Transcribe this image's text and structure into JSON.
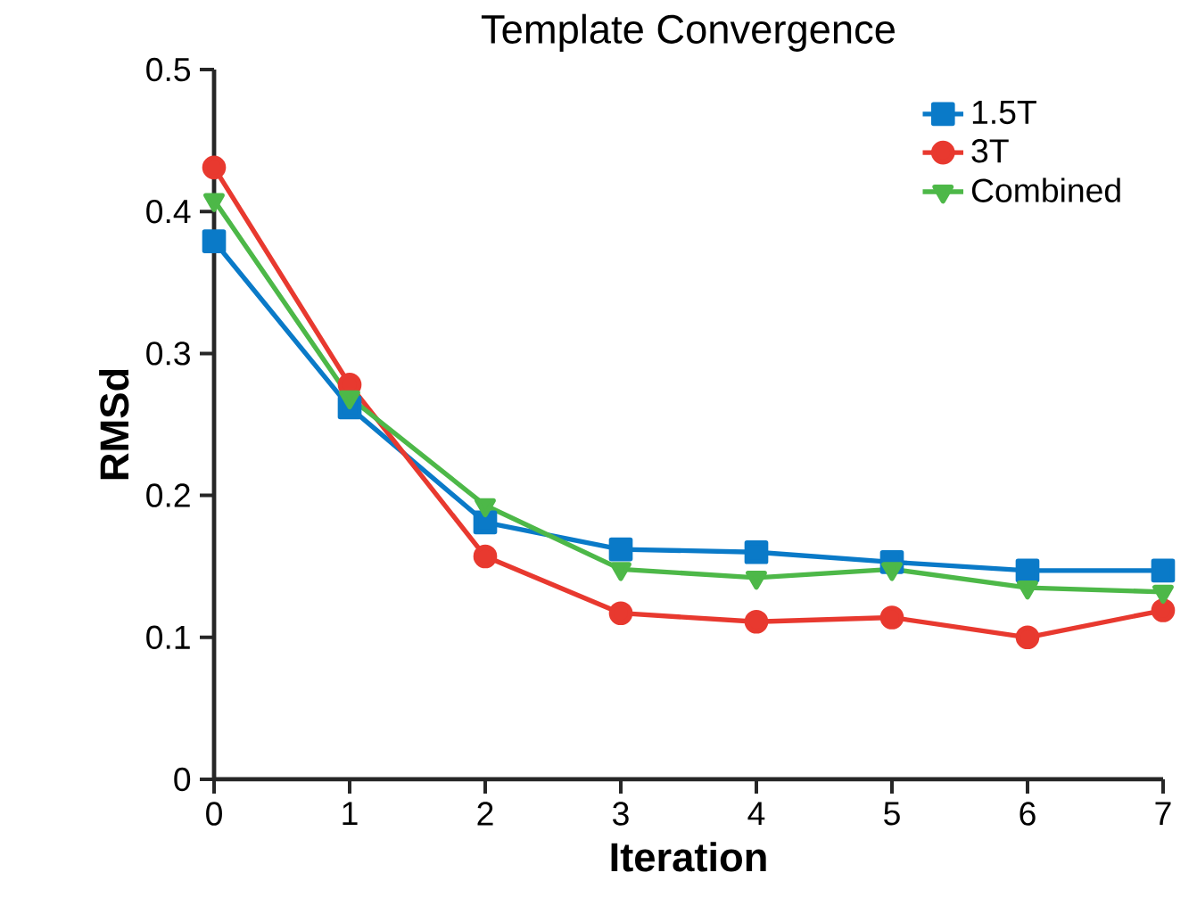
{
  "chart_data": {
    "type": "line",
    "title": "Template Convergence",
    "xlabel": "Iteration",
    "ylabel": "RMSd",
    "x": [
      0,
      1,
      2,
      3,
      4,
      5,
      6,
      7
    ],
    "series": [
      {
        "name": "1.5T",
        "color": "#0a7ac8",
        "marker": "square",
        "values": [
          0.379,
          0.262,
          0.181,
          0.162,
          0.16,
          0.153,
          0.147,
          0.147
        ]
      },
      {
        "name": "3T",
        "color": "#e8392f",
        "marker": "circle",
        "values": [
          0.431,
          0.278,
          0.157,
          0.117,
          0.111,
          0.114,
          0.1,
          0.119
        ]
      },
      {
        "name": "Combined",
        "color": "#4db848",
        "marker": "triangle",
        "values": [
          0.408,
          0.269,
          0.193,
          0.148,
          0.142,
          0.148,
          0.135,
          0.132
        ]
      }
    ],
    "xlim": [
      0,
      7
    ],
    "xticks": [
      0,
      1,
      2,
      3,
      4,
      5,
      6,
      7
    ],
    "ylim": [
      0,
      0.5
    ],
    "yticks": [
      0,
      0.1,
      0.2,
      0.3,
      0.4,
      0.5
    ],
    "grid": false,
    "legend": "top right",
    "line_style": "solid"
  }
}
